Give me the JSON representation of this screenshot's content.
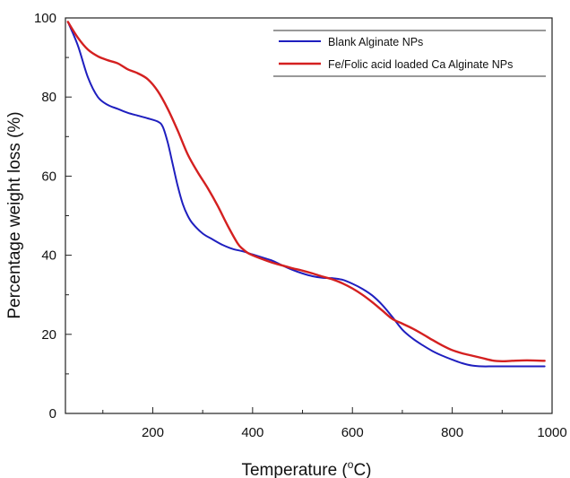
{
  "chart_data": {
    "type": "line",
    "title": "",
    "xlabel_main": "Temperature (",
    "xlabel_sup": "o",
    "xlabel_tail": "C)",
    "ylabel": "Percentage weight loss (%)",
    "xlim": [
      25,
      1000
    ],
    "ylim": [
      0,
      100
    ],
    "xticks": [
      200,
      400,
      600,
      800,
      1000
    ],
    "yticks": [
      0,
      20,
      40,
      60,
      80,
      100
    ],
    "grid": false,
    "legend_position": "top-right",
    "series": [
      {
        "name": "Blank Alginate NPs",
        "color": "#1f1fbf",
        "x": [
          30,
          50,
          70,
          90,
          110,
          130,
          150,
          170,
          190,
          210,
          220,
          230,
          240,
          250,
          260,
          270,
          280,
          300,
          320,
          340,
          360,
          380,
          400,
          420,
          440,
          460,
          480,
          500,
          520,
          540,
          560,
          580,
          600,
          620,
          640,
          660,
          680,
          700,
          720,
          740,
          760,
          780,
          800,
          820,
          840,
          860,
          880,
          900,
          950,
          985
        ],
        "y": [
          99,
          93,
          85,
          80,
          78,
          77,
          76,
          75.3,
          74.6,
          73.8,
          72.5,
          68.5,
          63,
          57.5,
          53,
          50,
          48,
          45.5,
          44,
          42.6,
          41.6,
          41,
          40.2,
          39.4,
          38.6,
          37.4,
          36.3,
          35.4,
          34.7,
          34.3,
          34.2,
          33.8,
          32.8,
          31.5,
          29.8,
          27.4,
          24.4,
          21.2,
          19,
          17.3,
          15.8,
          14.6,
          13.6,
          12.7,
          12.1,
          11.9,
          11.9,
          11.9,
          11.9,
          11.9
        ]
      },
      {
        "name": "Fe/Folic acid loaded Ca Alginate NPs",
        "color": "#d42020",
        "x": [
          30,
          50,
          70,
          90,
          110,
          130,
          150,
          170,
          190,
          210,
          230,
          250,
          270,
          290,
          310,
          330,
          350,
          370,
          380,
          390,
          400,
          420,
          440,
          460,
          480,
          500,
          520,
          540,
          560,
          580,
          600,
          620,
          640,
          660,
          680,
          700,
          720,
          740,
          760,
          780,
          800,
          820,
          840,
          860,
          880,
          900,
          920,
          940,
          960,
          985
        ],
        "y": [
          99,
          95,
          92,
          90.3,
          89.3,
          88.5,
          87,
          86,
          84.5,
          81.5,
          77,
          71.5,
          65.5,
          61,
          57,
          52.5,
          47.5,
          43,
          41.6,
          40.6,
          40,
          39,
          38.1,
          37.4,
          36.7,
          36.1,
          35.4,
          34.6,
          33.9,
          32.9,
          31.6,
          30,
          28.1,
          26,
          23.9,
          22.7,
          21.5,
          20.1,
          18.6,
          17.2,
          16,
          15.2,
          14.6,
          14,
          13.4,
          13.2,
          13.3,
          13.4,
          13.4,
          13.3
        ]
      }
    ]
  }
}
